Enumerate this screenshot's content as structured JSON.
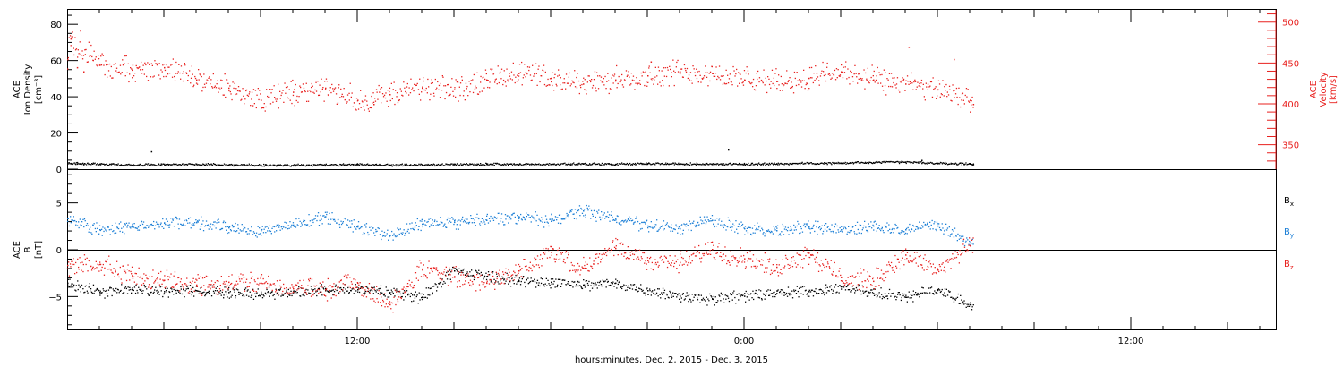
{
  "chart_data": [
    {
      "type": "scatter",
      "panel": "top",
      "ylabel_left": [
        "ACE",
        "Ion Density",
        "[cm⁻³]"
      ],
      "ylabel_right": [
        "ACE",
        "Velocity",
        "[km/s]"
      ],
      "left_axis": {
        "ylim": [
          0,
          88
        ],
        "ticks": [
          0,
          20,
          40,
          60,
          80
        ]
      },
      "right_axis": {
        "ylim": [
          320,
          515
        ],
        "ticks": [
          350,
          400,
          450,
          500
        ],
        "color": "#e8201e"
      },
      "xlim_hours": [
        3,
        40.5
      ],
      "series": [
        {
          "axis": "left",
          "color": "#000000",
          "points": [
            [
              3.1,
              3.5
            ],
            [
              3.3,
              4
            ],
            [
              3.5,
              2.8
            ],
            [
              4,
              3
            ],
            [
              5,
              2.5
            ],
            [
              6,
              2.8
            ],
            [
              7,
              3
            ],
            [
              8,
              2.6
            ],
            [
              9,
              2.5
            ],
            [
              10,
              2.4
            ],
            [
              11,
              2.6
            ],
            [
              12,
              2.8
            ],
            [
              13,
              2.5
            ],
            [
              14,
              2.7
            ],
            [
              15,
              2.8
            ],
            [
              16,
              3
            ],
            [
              17,
              2.8
            ],
            [
              18,
              3
            ],
            [
              19,
              3.2
            ],
            [
              20,
              3
            ],
            [
              21,
              3.4
            ],
            [
              22,
              3.2
            ],
            [
              23,
              3.1
            ],
            [
              24,
              3
            ],
            [
              25,
              3.2
            ],
            [
              26,
              3.5
            ],
            [
              27,
              3.6
            ],
            [
              28,
              4
            ],
            [
              29,
              4.2
            ],
            [
              30,
              3.5
            ],
            [
              31,
              3.2
            ],
            [
              31.1,
              2.8
            ],
            [
              5.6,
              10
            ],
            [
              23.5,
              11
            ],
            [
              29.5,
              5.2
            ]
          ]
        },
        {
          "axis": "right",
          "color": "#e8201e",
          "points": [
            [
              3,
              455
            ],
            [
              3.1,
              480
            ],
            [
              3.3,
              445
            ],
            [
              3.5,
              440
            ],
            [
              4,
              448
            ],
            [
              5,
              442
            ],
            [
              6,
              445
            ],
            [
              7,
              430
            ],
            [
              8,
              420
            ],
            [
              9,
              405
            ],
            [
              10,
              415
            ],
            [
              11,
              420
            ],
            [
              12,
              405
            ],
            [
              12.5,
              400
            ],
            [
              13,
              412
            ],
            [
              14,
              420
            ],
            [
              15,
              418
            ],
            [
              16,
              430
            ],
            [
              17,
              438
            ],
            [
              18,
              432
            ],
            [
              19,
              425
            ],
            [
              20,
              430
            ],
            [
              21,
              435
            ],
            [
              22,
              440
            ],
            [
              23,
              438
            ],
            [
              24,
              430
            ],
            [
              25,
              428
            ],
            [
              26,
              432
            ],
            [
              27,
              440
            ],
            [
              28,
              430
            ],
            [
              29,
              425
            ],
            [
              30,
              418
            ],
            [
              31,
              405
            ],
            [
              31.1,
              400
            ],
            [
              3.4,
              490
            ],
            [
              21.1,
              452
            ],
            [
              29.1,
              470
            ],
            [
              30.5,
              455
            ]
          ]
        }
      ]
    },
    {
      "type": "scatter",
      "panel": "bottom",
      "ylabel_left": [
        "ACE",
        "B",
        "[nT]"
      ],
      "ylim": [
        -8.5,
        8.5
      ],
      "ticks": [
        -5,
        0,
        5
      ],
      "xlim_hours": [
        3,
        40.5
      ],
      "legend": [
        {
          "label": "B",
          "sub": "x",
          "color": "#000000"
        },
        {
          "label": "B",
          "sub": "y",
          "color": "#1c7fd6"
        },
        {
          "label": "B",
          "sub": "z",
          "color": "#e8201e"
        }
      ],
      "series": [
        {
          "name": "Bx",
          "color": "#000000",
          "points": [
            [
              3,
              -3.5
            ],
            [
              4,
              -4.5
            ],
            [
              5,
              -4.2
            ],
            [
              6,
              -4.4
            ],
            [
              7,
              -4.3
            ],
            [
              8,
              -4.5
            ],
            [
              9,
              -4.6
            ],
            [
              10,
              -4.5
            ],
            [
              11,
              -4.3
            ],
            [
              12,
              -4.2
            ],
            [
              13,
              -4.5
            ],
            [
              14,
              -5
            ],
            [
              15,
              -2.2
            ],
            [
              16,
              -2.8
            ],
            [
              17,
              -3.3
            ],
            [
              18,
              -3.4
            ],
            [
              19,
              -3.7
            ],
            [
              20,
              -3.5
            ],
            [
              21,
              -4.3
            ],
            [
              22,
              -4.9
            ],
            [
              23,
              -5.2
            ],
            [
              24,
              -4.9
            ],
            [
              25,
              -4.6
            ],
            [
              26,
              -4.4
            ],
            [
              27,
              -3.9
            ],
            [
              28,
              -4.6
            ],
            [
              29,
              -5
            ],
            [
              30,
              -4.2
            ],
            [
              31,
              -5.8
            ]
          ]
        },
        {
          "name": "By",
          "color": "#1c7fd6",
          "points": [
            [
              3,
              3.4
            ],
            [
              4,
              2.2
            ],
            [
              5,
              2.5
            ],
            [
              6,
              2.9
            ],
            [
              7,
              3
            ],
            [
              8,
              2.4
            ],
            [
              9,
              2.1
            ],
            [
              10,
              2.7
            ],
            [
              11,
              3.6
            ],
            [
              12,
              2.5
            ],
            [
              13,
              1.6
            ],
            [
              14,
              2.8
            ],
            [
              15,
              3
            ],
            [
              16,
              3.2
            ],
            [
              17,
              3.6
            ],
            [
              18,
              3.1
            ],
            [
              19,
              4.2
            ],
            [
              20,
              3.4
            ],
            [
              21,
              2.6
            ],
            [
              22,
              2.3
            ],
            [
              23,
              3.2
            ],
            [
              24,
              2.3
            ],
            [
              25,
              2.1
            ],
            [
              26,
              2.5
            ],
            [
              27,
              2.2
            ],
            [
              28,
              2.6
            ],
            [
              29,
              2.2
            ],
            [
              30,
              2.6
            ],
            [
              31,
              0.8
            ]
          ]
        },
        {
          "name": "Bz",
          "color": "#e8201e",
          "points": [
            [
              3,
              -1.6
            ],
            [
              4,
              -1.5
            ],
            [
              5,
              -2.7
            ],
            [
              6,
              -3.2
            ],
            [
              7,
              -3.7
            ],
            [
              8,
              -3.4
            ],
            [
              9,
              -3.5
            ],
            [
              10,
              -4.1
            ],
            [
              11,
              -4.2
            ],
            [
              12,
              -3.5
            ],
            [
              13,
              -5.8
            ],
            [
              14,
              -2
            ],
            [
              15,
              -2.8
            ],
            [
              16,
              -3.5
            ],
            [
              17,
              -2.2
            ],
            [
              18,
              -0.2
            ],
            [
              19,
              -1.9
            ],
            [
              20,
              0.2
            ],
            [
              21,
              -1.1
            ],
            [
              22,
              -1.3
            ],
            [
              23,
              0.1
            ],
            [
              24,
              -0.9
            ],
            [
              25,
              -1.8
            ],
            [
              26,
              -0.3
            ],
            [
              27,
              -2.9
            ],
            [
              28,
              -3.3
            ],
            [
              29,
              -0.5
            ],
            [
              30,
              -2.1
            ],
            [
              31,
              0.5
            ]
          ]
        }
      ]
    }
  ],
  "xaxis": {
    "tick_labels": [
      {
        "hour": 12,
        "label": "12:00"
      },
      {
        "hour": 24,
        "label": "0:00"
      },
      {
        "hour": 36,
        "label": "12:00"
      }
    ],
    "title": "hours:minutes, Dec.  2, 2015 - Dec.  3, 2015"
  }
}
